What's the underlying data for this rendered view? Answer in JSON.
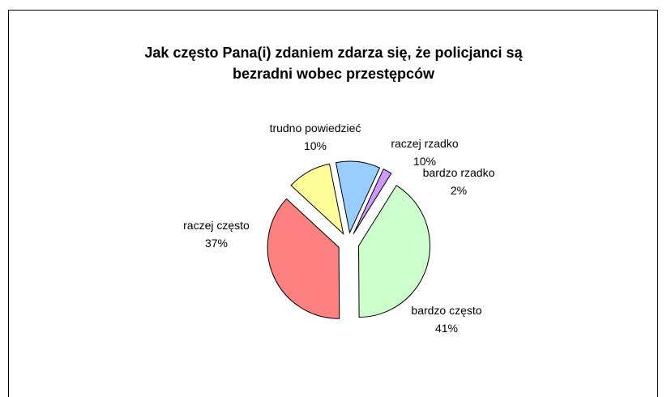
{
  "chart_data": {
    "type": "pie",
    "title_lines": [
      "Jak często Pana(i) zdaniem zdarza się, że policjanci są",
      "bezradni wobec przestępców"
    ],
    "slices": [
      {
        "label": "bardzo często",
        "value": 41,
        "display": "41%",
        "color": "#ccffcc"
      },
      {
        "label": "raczej często",
        "value": 37,
        "display": "37%",
        "color": "#ff8080"
      },
      {
        "label": "trudno powiedzieć",
        "value": 10,
        "display": "10%",
        "color": "#ffff99"
      },
      {
        "label": "raczej rzadko",
        "value": 10,
        "display": "10%",
        "color": "#99ccff"
      },
      {
        "label": "bardzo rzadko",
        "value": 2,
        "display": "2%",
        "color": "#cc99ff"
      }
    ],
    "legend": "none"
  }
}
